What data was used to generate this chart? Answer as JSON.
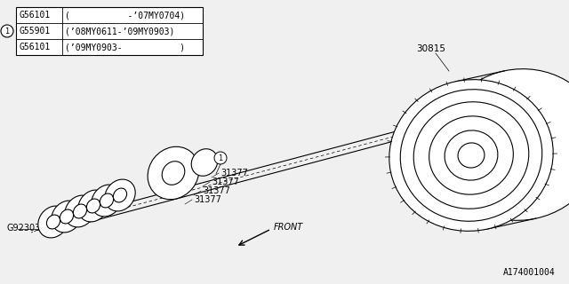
{
  "bg_color": "#f0f0f0",
  "line_color": "#000000",
  "title": "A174001004",
  "table_rows": [
    [
      "G56101",
      "(           -’07MY0704)"
    ],
    [
      "G55901",
      "(’08MY0611-’09MY0903)"
    ],
    [
      "G56101",
      "(’09MY0903-           )"
    ]
  ],
  "font_size_label": 7,
  "font_size_table": 7,
  "font_size_title": 7
}
